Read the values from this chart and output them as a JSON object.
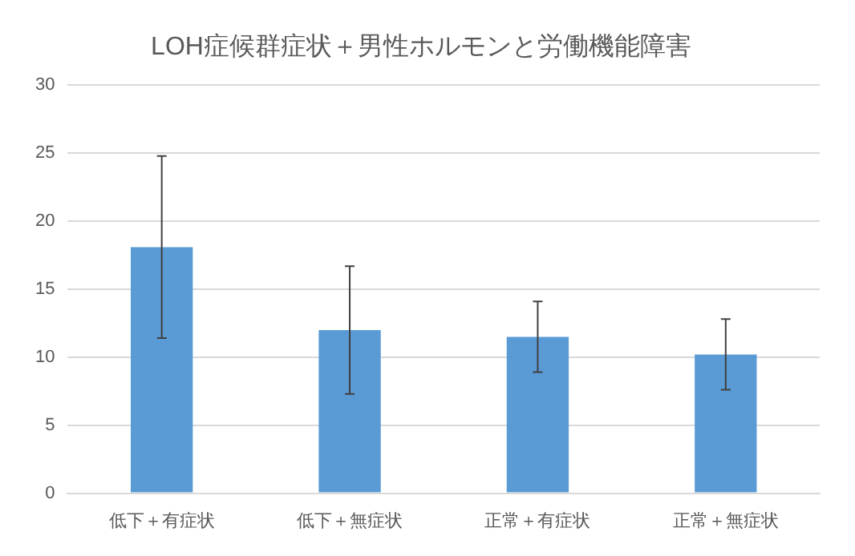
{
  "chart_data": {
    "type": "bar",
    "title": "LOH症候群症状＋男性ホルモンと労働機能障害",
    "categories": [
      "低下＋有症状",
      "低下＋無症状",
      "正常＋有症状",
      "正常＋無症状"
    ],
    "values": [
      18.1,
      12.0,
      11.5,
      10.2
    ],
    "errors": [
      6.7,
      4.7,
      2.6,
      2.6
    ],
    "color": "#5b9bd5",
    "ylim": [
      0,
      30
    ],
    "yticks": [
      0,
      5,
      10,
      15,
      20,
      25,
      30
    ],
    "grid": "y",
    "legend": false
  }
}
